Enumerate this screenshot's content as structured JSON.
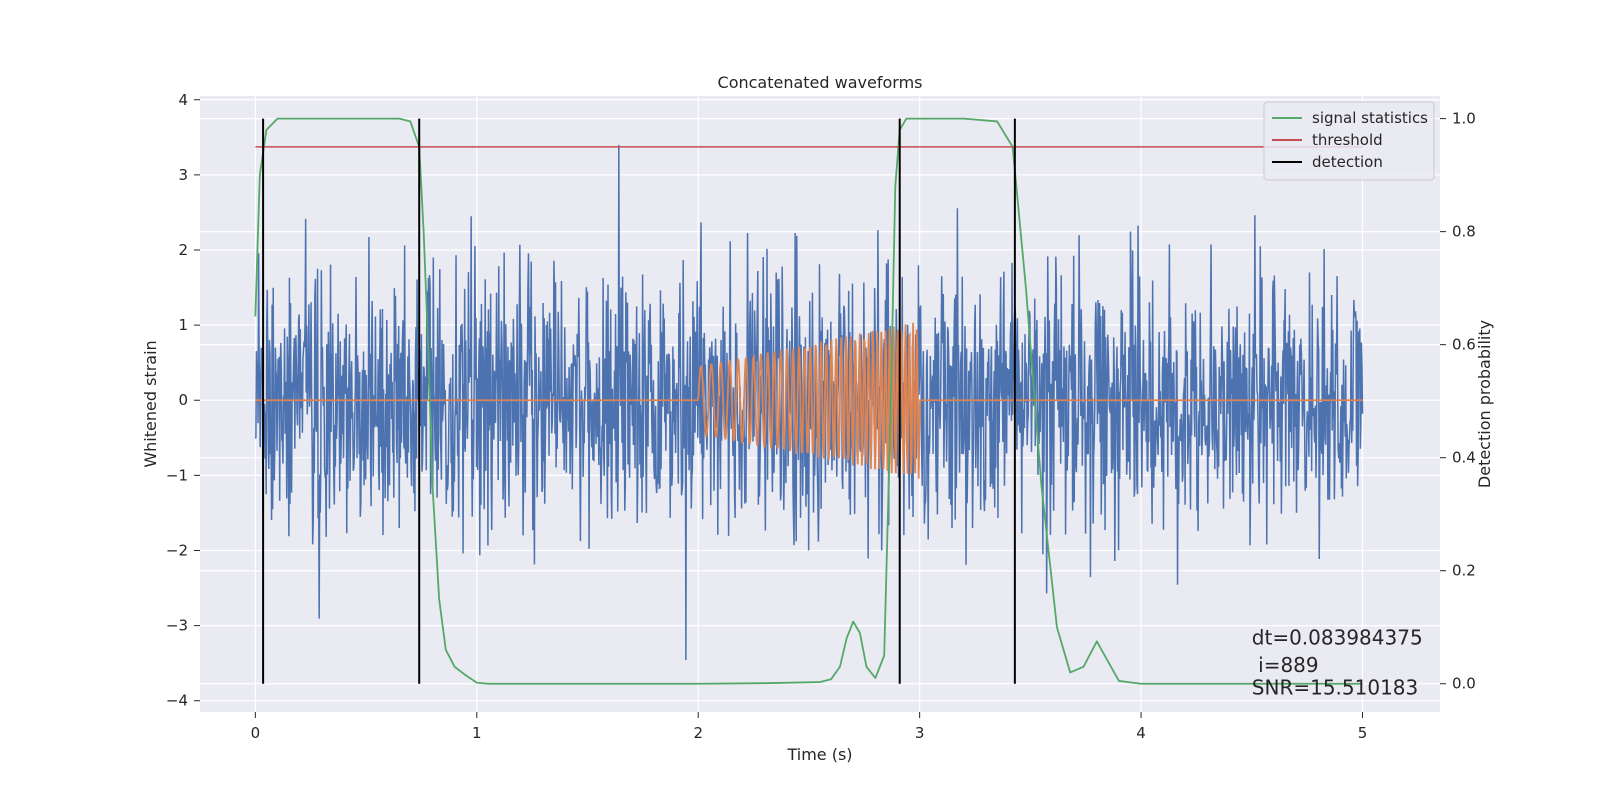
{
  "chart_data": {
    "type": "line",
    "title": "Concatenated waveforms",
    "xlabel": "Time (s)",
    "ylabel": "Whitened strain",
    "ylabel_right": "Detection probability",
    "xlim": [
      -0.25,
      5.35
    ],
    "ylim": [
      -4.15,
      4.05
    ],
    "ylim_right": [
      -0.05,
      1.04
    ],
    "x_ticks": [
      0,
      1,
      2,
      3,
      4,
      5
    ],
    "x_tick_labels": [
      "0",
      "1",
      "2",
      "3",
      "4",
      "5"
    ],
    "y_ticks": [
      -4,
      -3,
      -2,
      -1,
      0,
      1,
      2,
      3,
      4
    ],
    "y_tick_labels": [
      "−4",
      "−3",
      "−2",
      "−1",
      "0",
      "1",
      "2",
      "3",
      "4"
    ],
    "y_right_ticks": [
      0.0,
      0.2,
      0.4,
      0.6,
      0.8,
      1.0
    ],
    "y_right_tick_labels": [
      "0.0",
      "0.2",
      "0.4",
      "0.6",
      "0.8",
      "1.0"
    ],
    "grid": true,
    "legend": {
      "placement": "top-right",
      "entries": [
        {
          "label": "signal statistics",
          "color": "#55a868"
        },
        {
          "label": "threshold",
          "color": "#c44e52"
        },
        {
          "label": "detection",
          "color": "#000000"
        }
      ]
    },
    "colors": {
      "strain": "#4c72b0",
      "template": "#dd8452",
      "statistics": "#55a868",
      "threshold": "#c44e52",
      "detection": "#000000",
      "background": "#eaeaf2",
      "grid": "#ffffff"
    },
    "series": [
      {
        "name": "signal statistics",
        "axis": "right",
        "x": [
          0.0,
          0.02,
          0.05,
          0.1,
          0.15,
          0.3,
          0.5,
          0.65,
          0.7,
          0.74,
          0.76,
          0.78,
          0.8,
          0.83,
          0.86,
          0.9,
          0.95,
          1.0,
          1.05,
          1.2,
          1.5,
          2.0,
          2.3,
          2.55,
          2.6,
          2.64,
          2.67,
          2.7,
          2.73,
          2.76,
          2.8,
          2.84,
          2.87,
          2.89,
          2.91,
          2.94,
          3.0,
          3.2,
          3.35,
          3.42,
          3.48,
          3.55,
          3.62,
          3.68,
          3.74,
          3.8,
          3.85,
          3.9,
          4.0,
          5.0
        ],
        "y": [
          0.65,
          0.9,
          0.98,
          1.0,
          1.0,
          1.0,
          1.0,
          1.0,
          0.995,
          0.95,
          0.8,
          0.6,
          0.35,
          0.15,
          0.06,
          0.03,
          0.015,
          0.002,
          0.0,
          0.0,
          0.0,
          0.0,
          0.001,
          0.003,
          0.008,
          0.03,
          0.08,
          0.11,
          0.09,
          0.03,
          0.01,
          0.05,
          0.5,
          0.88,
          0.98,
          1.0,
          1.0,
          1.0,
          0.995,
          0.95,
          0.7,
          0.35,
          0.1,
          0.02,
          0.03,
          0.075,
          0.04,
          0.005,
          0.0,
          0.0
        ]
      },
      {
        "name": "threshold",
        "axis": "right",
        "x": [
          0,
          5
        ],
        "y": [
          0.95,
          0.95
        ]
      },
      {
        "name": "detection",
        "axis": "right",
        "vlines": [
          0.035,
          0.74,
          2.91,
          3.43
        ],
        "ymin": 0.0,
        "ymax": 1.0
      }
    ],
    "noise": {
      "x_range": [
        0,
        5
      ],
      "amplitude_sd": 0.85,
      "peak_max": 3.4,
      "peak_min": -3.8
    },
    "template": {
      "x_range": [
        2,
        3
      ],
      "flat_range": [
        0,
        5
      ],
      "amplitude_start": 0.45,
      "amplitude_end": 1.05,
      "freq_start": 20,
      "freq_end": 60
    },
    "annotations": [
      {
        "text": "dt=0.083984375",
        "x": 4.5,
        "y": -3.25
      },
      {
        "text": " i=889",
        "x": 4.5,
        "y": -3.62
      },
      {
        "text": "SNR=15.510183",
        "x": 4.5,
        "y": -3.92
      }
    ]
  }
}
